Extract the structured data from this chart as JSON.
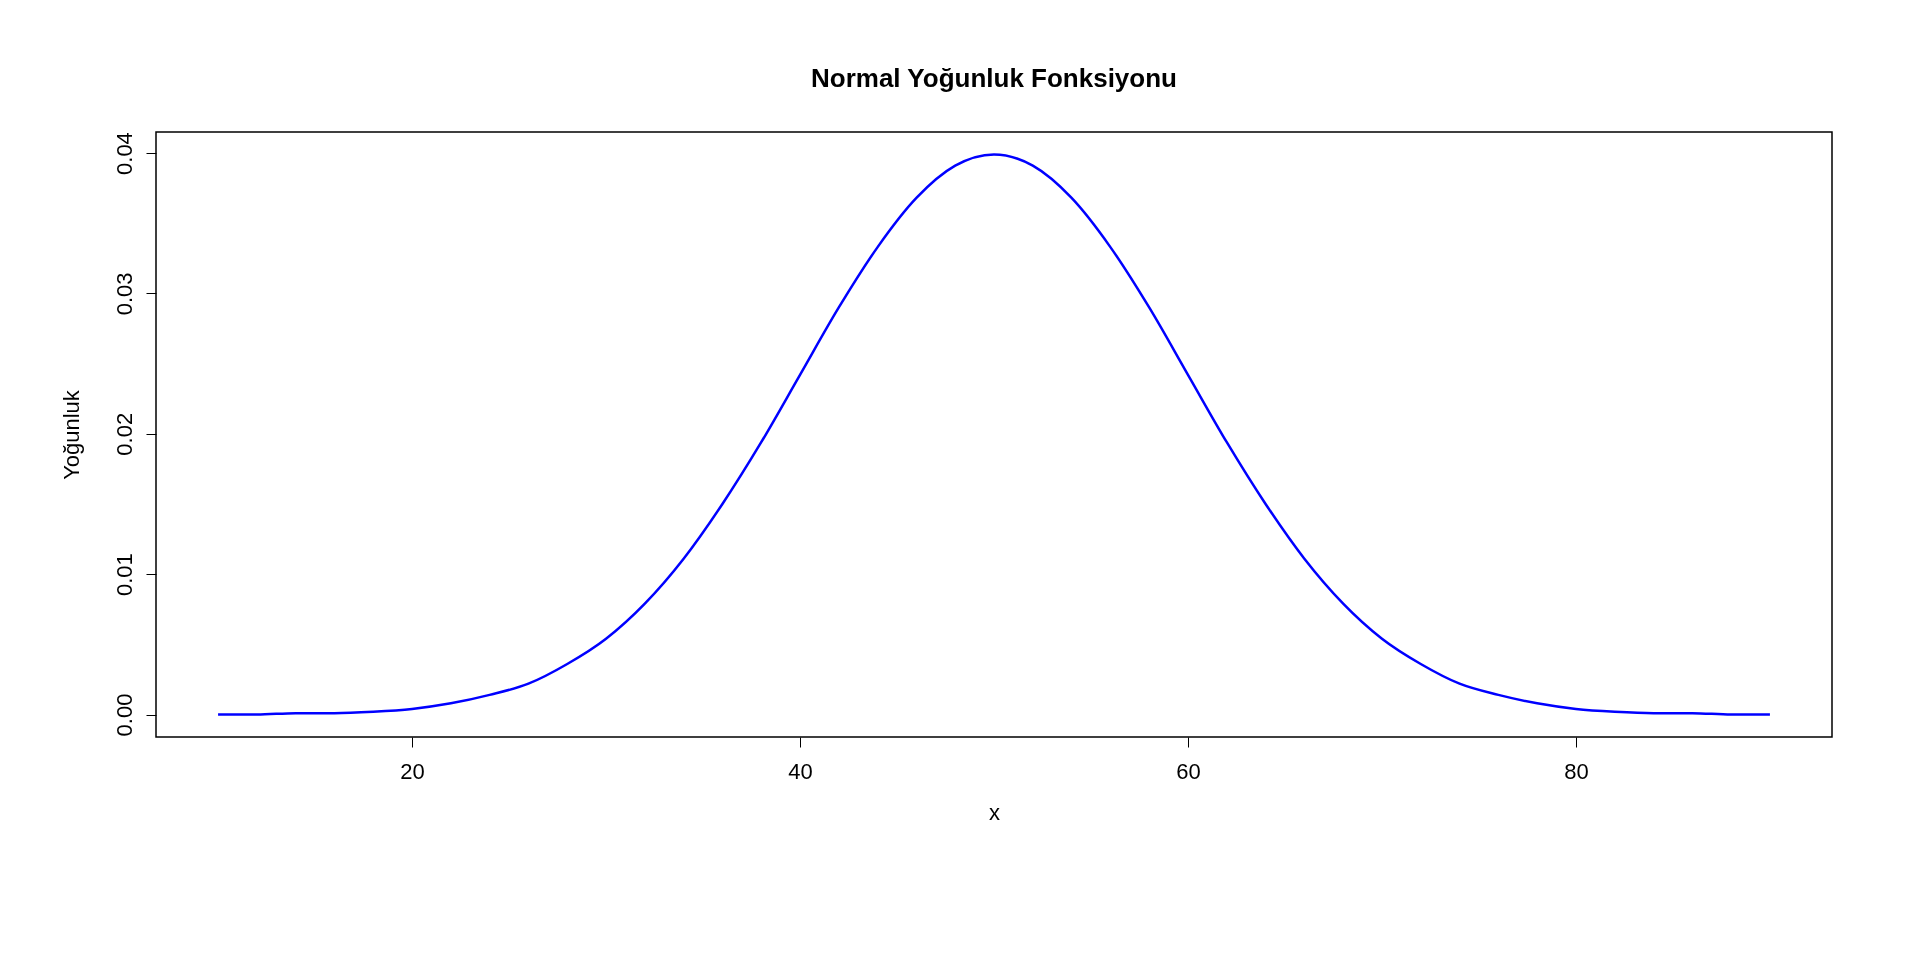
{
  "chart_data": {
    "type": "line",
    "title": "Normal Yoğunluk Fonksiyonu",
    "xlabel": "x",
    "ylabel": "Yoğunluk",
    "x": [
      10,
      12,
      14,
      16,
      18,
      20,
      22,
      24,
      26,
      28,
      30,
      32,
      34,
      36,
      38,
      40,
      42,
      44,
      46,
      48,
      50,
      52,
      54,
      56,
      58,
      60,
      62,
      64,
      66,
      68,
      70,
      72,
      74,
      76,
      78,
      80,
      82,
      84,
      86,
      88,
      90
    ],
    "series": [
      {
        "color": "#0000ff",
        "values": [
          0.0,
          0.0,
          0.0001,
          0.0001,
          0.0002,
          0.0004,
          0.0008,
          0.0014,
          0.0022,
          0.0036,
          0.0054,
          0.0079,
          0.0111,
          0.015,
          0.0194,
          0.0242,
          0.029,
          0.0333,
          0.0368,
          0.0391,
          0.0399,
          0.0391,
          0.0368,
          0.0333,
          0.029,
          0.0242,
          0.0194,
          0.015,
          0.0111,
          0.0079,
          0.0054,
          0.0036,
          0.0022,
          0.0014,
          0.0008,
          0.0004,
          0.0002,
          0.0001,
          0.0001,
          0.0,
          0.0
        ]
      }
    ],
    "xlim": [
      6.8,
      93.2
    ],
    "ylim": [
      -0.0016,
      0.0415
    ],
    "xticks": [
      20,
      40,
      60,
      80
    ],
    "yticks": [
      {
        "value": 0,
        "label": "0.00"
      },
      0.01,
      {
        "value": 0.02,
        "label": "0.02"
      },
      {
        "value": 0.03,
        "label": "0.03"
      },
      {
        "value": 0.04,
        "label": "0.04"
      }
    ],
    "grid": false,
    "marker": "none",
    "line_style": "solid"
  }
}
